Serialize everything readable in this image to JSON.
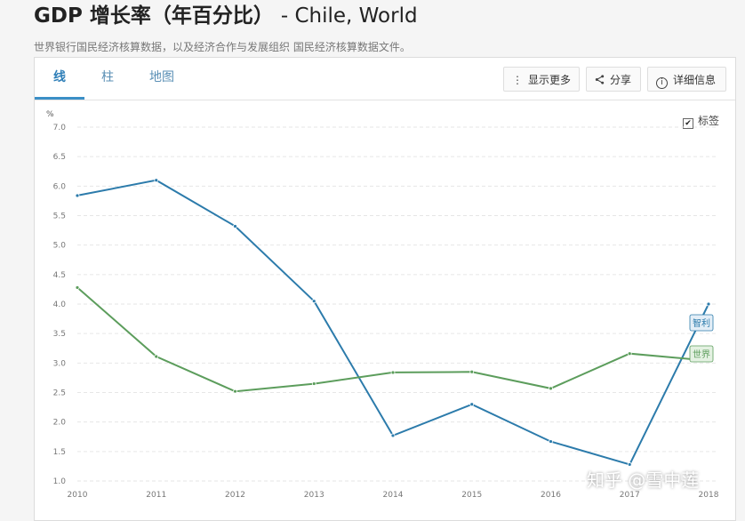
{
  "header": {
    "title": "GDP 增长率（年百分比）",
    "subtitle": "- Chile, World",
    "source": "世界银行国民经济核算数据，以及经济合作与发展组织 国民经济核算数据文件。"
  },
  "tabs": [
    {
      "label": "线",
      "active": true
    },
    {
      "label": "柱",
      "active": false
    },
    {
      "label": "地图",
      "active": false
    }
  ],
  "toolbar": {
    "more_label": "显示更多",
    "share_label": "分享",
    "details_label": "详细信息"
  },
  "labels_toggle": {
    "label": "标签",
    "checked": true
  },
  "watermark": "知乎 @雪中莲",
  "chart_data": {
    "type": "line",
    "x": [
      2010,
      2011,
      2012,
      2013,
      2014,
      2015,
      2016,
      2017,
      2018
    ],
    "ylabel": "%",
    "ylim": [
      1.0,
      7.0
    ],
    "yticks": [
      "7.0",
      "6.5",
      "6.0",
      "5.5",
      "5.0",
      "4.5",
      "4.0",
      "3.5",
      "3.0",
      "2.5",
      "2.0",
      "1.5",
      "1.0"
    ],
    "grid": true,
    "series": [
      {
        "name": "智利",
        "color": "#2c7bab",
        "values": [
          5.84,
          6.1,
          5.32,
          4.05,
          1.77,
          2.3,
          1.67,
          1.28,
          4.0
        ]
      },
      {
        "name": "世界",
        "color": "#5c9d5c",
        "values": [
          4.28,
          3.11,
          2.52,
          2.65,
          2.84,
          2.85,
          2.57,
          3.16,
          3.04
        ]
      }
    ]
  }
}
